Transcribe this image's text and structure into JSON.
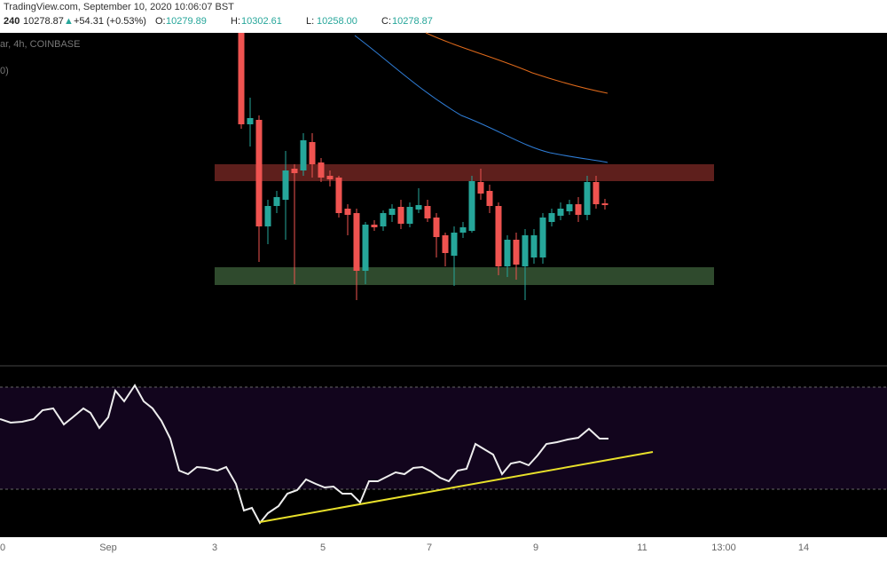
{
  "header": {
    "title": "TradingView.com, September 10, 2020 10:06:07 BST",
    "interval": "240",
    "price": "10278.87",
    "arrow": "▲",
    "change": "+54.31 (+0.53%)",
    "ohlc": [
      {
        "label": "O:",
        "value": "10279.89"
      },
      {
        "label": "H:",
        "value": "10302.61"
      },
      {
        "label": "L:",
        "value": "10258.00"
      },
      {
        "label": "C:",
        "value": "10278.87"
      }
    ]
  },
  "symbol_line": "ar, 4h, COINBASE",
  "indicator_line": "0)",
  "x_axis": [
    "0",
    "Sep",
    "3",
    "5",
    "7",
    "9",
    "11",
    "13:00",
    "14"
  ]
}
